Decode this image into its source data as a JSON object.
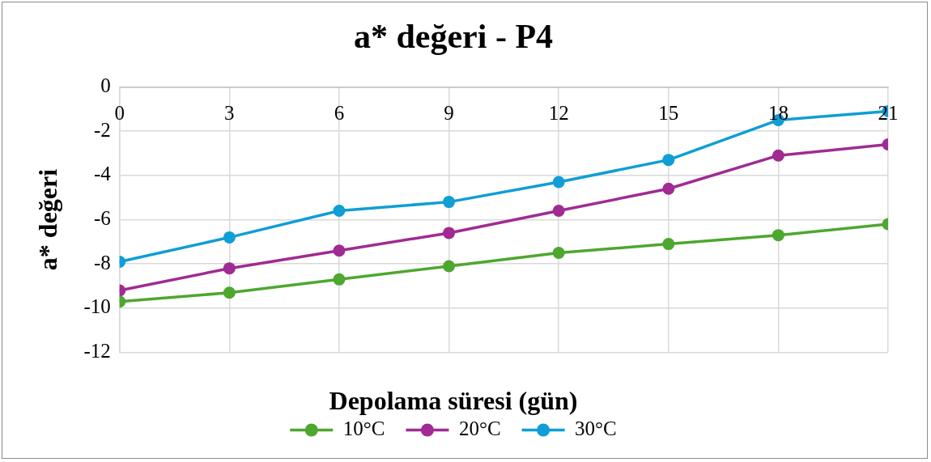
{
  "chart_data": {
    "type": "line",
    "title": "a* değeri - P4",
    "xlabel": "Depolama süresi (gün)",
    "ylabel": "a* değeri",
    "x": [
      0,
      3,
      6,
      9,
      12,
      15,
      18,
      21
    ],
    "xlim": [
      0,
      21
    ],
    "xticks": [
      0,
      3,
      6,
      9,
      12,
      15,
      18,
      21
    ],
    "ylim": [
      -12,
      0
    ],
    "yticks": [
      -12,
      -10,
      -8,
      -6,
      -4,
      -2,
      0
    ],
    "series": [
      {
        "name": "10°C",
        "color": "#4ea72e",
        "values": [
          -9.7,
          -9.3,
          -8.7,
          -8.1,
          -7.5,
          -7.1,
          -6.7,
          -6.2
        ]
      },
      {
        "name": "20°C",
        "color": "#a02b93",
        "values": [
          -9.2,
          -8.2,
          -7.4,
          -6.6,
          -5.6,
          -4.6,
          -3.1,
          -2.6
        ]
      },
      {
        "name": "30°C",
        "color": "#0f9ed5",
        "values": [
          -7.9,
          -6.8,
          -5.6,
          -5.2,
          -4.3,
          -3.3,
          -1.5,
          -1.1
        ]
      }
    ],
    "grid": true,
    "legend": "bottom",
    "marker": "circle",
    "line_style": "solid"
  }
}
